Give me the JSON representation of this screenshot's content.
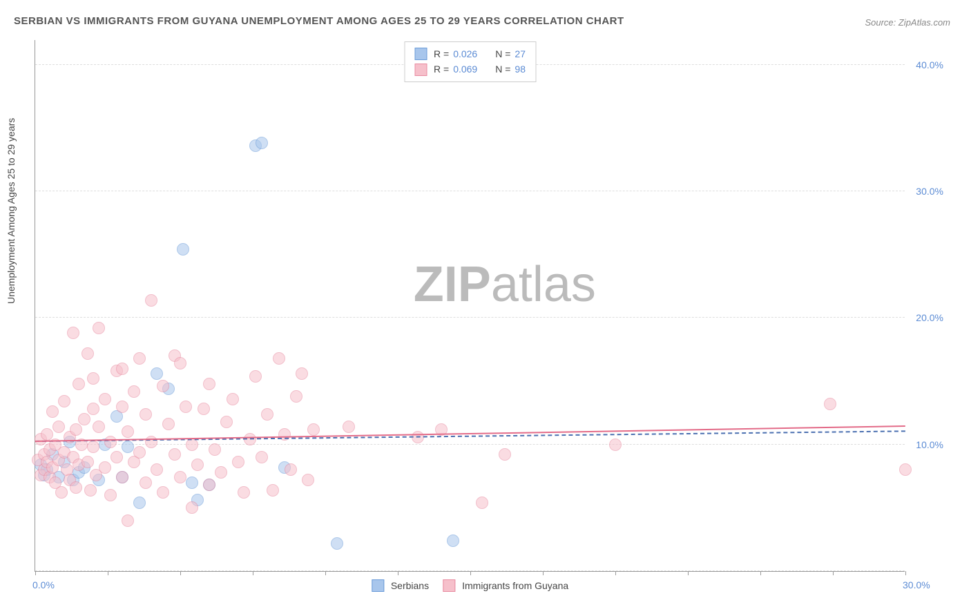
{
  "title": "SERBIAN VS IMMIGRANTS FROM GUYANA UNEMPLOYMENT AMONG AGES 25 TO 29 YEARS CORRELATION CHART",
  "source": "Source: ZipAtlas.com",
  "ylabel": "Unemployment Among Ages 25 to 29 years",
  "watermark_bold": "ZIP",
  "watermark_light": "atlas",
  "chart": {
    "type": "scatter",
    "background_color": "#ffffff",
    "grid_color": "#dddddd",
    "axis_color": "#999999",
    "xlim": [
      0,
      30
    ],
    "ylim": [
      0,
      42
    ],
    "xticks": [
      0,
      2.5,
      5,
      7.5,
      10,
      12.5,
      15,
      17.5,
      20,
      22.5,
      25,
      27.5,
      30
    ],
    "xtick_labels": {
      "0": "0.0%",
      "30": "30.0%"
    },
    "ytick_gridlines": [
      0,
      10,
      20,
      30,
      40
    ],
    "ytick_labels": {
      "10": "10.0%",
      "20": "20.0%",
      "30": "30.0%",
      "40": "40.0%"
    },
    "label_fontsize": 14,
    "label_color": "#5b8bd4",
    "marker_radius": 9,
    "marker_opacity": 0.55,
    "series": [
      {
        "name": "Serbians",
        "fill": "#a8c6ec",
        "stroke": "#6a9bd8",
        "R": "0.026",
        "N": "27",
        "trend": {
          "y_at_xmin": 10.2,
          "y_at_xmax": 11.0,
          "color": "#4a6fb0",
          "dash": true,
          "width": 2
        },
        "points": [
          [
            0.2,
            8.4
          ],
          [
            0.3,
            7.6
          ],
          [
            0.4,
            8.0
          ],
          [
            0.6,
            9.2
          ],
          [
            0.8,
            7.4
          ],
          [
            1.0,
            8.6
          ],
          [
            1.2,
            10.2
          ],
          [
            1.3,
            7.2
          ],
          [
            1.5,
            7.8
          ],
          [
            1.7,
            8.2
          ],
          [
            2.2,
            7.2
          ],
          [
            2.4,
            10.0
          ],
          [
            2.8,
            12.2
          ],
          [
            3.0,
            7.4
          ],
          [
            3.2,
            9.8
          ],
          [
            3.6,
            5.4
          ],
          [
            4.2,
            15.6
          ],
          [
            4.6,
            14.4
          ],
          [
            5.1,
            25.4
          ],
          [
            5.4,
            7.0
          ],
          [
            5.6,
            5.6
          ],
          [
            6.0,
            6.8
          ],
          [
            7.6,
            33.6
          ],
          [
            7.8,
            33.8
          ],
          [
            8.6,
            8.2
          ],
          [
            10.4,
            2.2
          ],
          [
            14.4,
            2.4
          ]
        ]
      },
      {
        "name": "Immigrants from Guyana",
        "fill": "#f6c0cb",
        "stroke": "#e88aa0",
        "R": "0.069",
        "N": "98",
        "trend": {
          "y_at_xmin": 10.2,
          "y_at_xmax": 11.4,
          "color": "#e36b88",
          "dash": false,
          "width": 2
        },
        "points": [
          [
            0.1,
            8.8
          ],
          [
            0.2,
            10.4
          ],
          [
            0.2,
            7.6
          ],
          [
            0.3,
            9.2
          ],
          [
            0.3,
            8.0
          ],
          [
            0.4,
            8.6
          ],
          [
            0.4,
            10.8
          ],
          [
            0.5,
            7.4
          ],
          [
            0.5,
            9.6
          ],
          [
            0.6,
            8.2
          ],
          [
            0.6,
            12.6
          ],
          [
            0.7,
            10.0
          ],
          [
            0.7,
            7.0
          ],
          [
            0.8,
            11.4
          ],
          [
            0.8,
            8.8
          ],
          [
            0.9,
            6.2
          ],
          [
            1.0,
            9.4
          ],
          [
            1.0,
            13.4
          ],
          [
            1.1,
            8.0
          ],
          [
            1.2,
            10.6
          ],
          [
            1.2,
            7.2
          ],
          [
            1.3,
            18.8
          ],
          [
            1.3,
            9.0
          ],
          [
            1.4,
            11.2
          ],
          [
            1.4,
            6.6
          ],
          [
            1.5,
            14.8
          ],
          [
            1.5,
            8.4
          ],
          [
            1.6,
            10.0
          ],
          [
            1.7,
            12.0
          ],
          [
            1.8,
            17.2
          ],
          [
            1.8,
            8.6
          ],
          [
            1.9,
            6.4
          ],
          [
            2.0,
            9.8
          ],
          [
            2.0,
            15.2
          ],
          [
            2.1,
            7.6
          ],
          [
            2.2,
            11.4
          ],
          [
            2.2,
            19.2
          ],
          [
            2.4,
            8.2
          ],
          [
            2.4,
            13.6
          ],
          [
            2.6,
            10.2
          ],
          [
            2.6,
            6.0
          ],
          [
            2.8,
            9.0
          ],
          [
            2.8,
            15.8
          ],
          [
            3.0,
            7.4
          ],
          [
            3.0,
            13.0
          ],
          [
            3.2,
            11.0
          ],
          [
            3.2,
            4.0
          ],
          [
            3.4,
            8.6
          ],
          [
            3.4,
            14.2
          ],
          [
            3.6,
            16.8
          ],
          [
            3.6,
            9.4
          ],
          [
            3.8,
            7.0
          ],
          [
            3.8,
            12.4
          ],
          [
            4.0,
            21.4
          ],
          [
            4.0,
            10.2
          ],
          [
            4.2,
            8.0
          ],
          [
            4.4,
            14.6
          ],
          [
            4.4,
            6.2
          ],
          [
            4.6,
            11.6
          ],
          [
            4.8,
            17.0
          ],
          [
            4.8,
            9.2
          ],
          [
            5.0,
            16.4
          ],
          [
            5.0,
            7.4
          ],
          [
            5.2,
            13.0
          ],
          [
            5.4,
            10.0
          ],
          [
            5.4,
            5.0
          ],
          [
            5.6,
            8.4
          ],
          [
            5.8,
            12.8
          ],
          [
            6.0,
            14.8
          ],
          [
            6.0,
            6.8
          ],
          [
            6.2,
            9.6
          ],
          [
            6.4,
            7.8
          ],
          [
            6.6,
            11.8
          ],
          [
            6.8,
            13.6
          ],
          [
            7.0,
            8.6
          ],
          [
            7.2,
            6.2
          ],
          [
            7.4,
            10.4
          ],
          [
            7.6,
            15.4
          ],
          [
            7.8,
            9.0
          ],
          [
            8.0,
            12.4
          ],
          [
            8.2,
            6.4
          ],
          [
            8.4,
            16.8
          ],
          [
            8.6,
            10.8
          ],
          [
            8.8,
            8.0
          ],
          [
            9.0,
            13.8
          ],
          [
            9.2,
            15.6
          ],
          [
            9.4,
            7.2
          ],
          [
            9.6,
            11.2
          ],
          [
            10.8,
            11.4
          ],
          [
            13.2,
            10.6
          ],
          [
            14.0,
            11.2
          ],
          [
            15.4,
            5.4
          ],
          [
            16.2,
            9.2
          ],
          [
            20.0,
            10.0
          ],
          [
            27.4,
            13.2
          ],
          [
            30.0,
            8.0
          ],
          [
            3.0,
            16.0
          ],
          [
            2.0,
            12.8
          ]
        ]
      }
    ],
    "legend_bottom": [
      {
        "label": "Serbians",
        "fill": "#a8c6ec",
        "stroke": "#6a9bd8"
      },
      {
        "label": "Immigrants from Guyana",
        "fill": "#f6c0cb",
        "stroke": "#e88aa0"
      }
    ],
    "legend_top_labels": {
      "R": "R =",
      "N": "N ="
    }
  }
}
